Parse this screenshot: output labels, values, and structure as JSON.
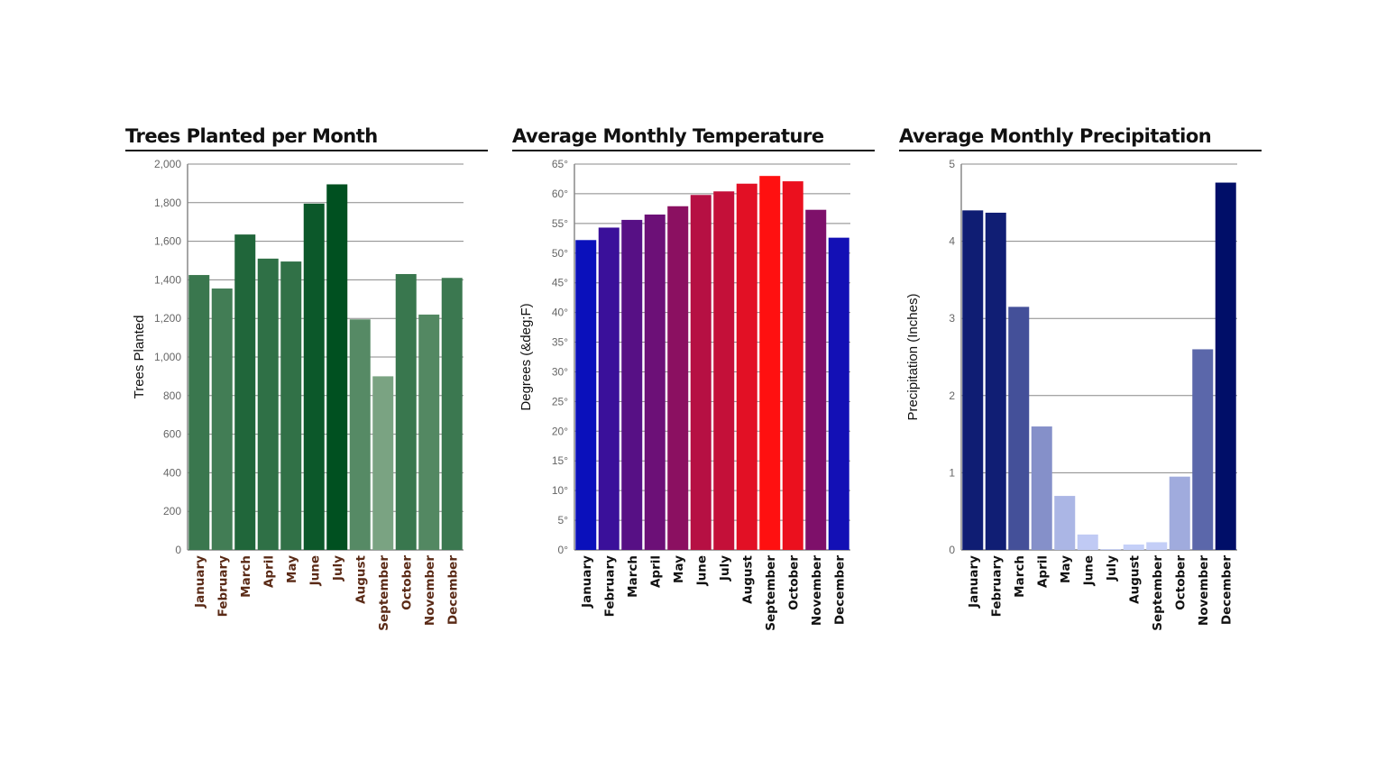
{
  "chart_data": [
    {
      "type": "bar",
      "title": "Trees Planted per Month",
      "xlabel": "",
      "ylabel": "Trees Planted",
      "categories": [
        "January",
        "February",
        "March",
        "April",
        "May",
        "June",
        "July",
        "August",
        "September",
        "October",
        "November",
        "December"
      ],
      "values": [
        1425,
        1355,
        1635,
        1510,
        1495,
        1795,
        1895,
        1195,
        900,
        1430,
        1220,
        1410
      ],
      "ylim": [
        0,
        2000
      ],
      "yticks": [
        0,
        200,
        400,
        600,
        800,
        1000,
        1200,
        1400,
        1600,
        1800,
        2000
      ],
      "ytick_labels": [
        "0",
        "200",
        "400",
        "600",
        "800",
        "1,000",
        "1,200",
        "1,400",
        "1,600",
        "1,800",
        "2,000"
      ],
      "grid": true,
      "colors": {
        "low": "#7aa382",
        "high": "#005020",
        "xtick_label": "#5a2a16",
        "grid": "#888888",
        "axis": "#888888"
      }
    },
    {
      "type": "bar",
      "title": "Average Monthly Temperature",
      "xlabel": "",
      "ylabel": "Degrees (&deg;F)",
      "categories": [
        "January",
        "February",
        "March",
        "April",
        "May",
        "June",
        "July",
        "August",
        "September",
        "October",
        "November",
        "December"
      ],
      "values": [
        52.2,
        54.3,
        55.6,
        56.5,
        57.9,
        59.8,
        60.4,
        61.7,
        63.0,
        62.1,
        57.3,
        52.6
      ],
      "ylim": [
        0,
        65
      ],
      "yticks": [
        0,
        5,
        10,
        15,
        20,
        25,
        30,
        35,
        40,
        45,
        50,
        55,
        60,
        65
      ],
      "ytick_labels": [
        "0°",
        "5°",
        "10°",
        "15°",
        "20°",
        "25°",
        "30°",
        "35°",
        "40°",
        "45°",
        "50°",
        "55°",
        "60°",
        "65°"
      ],
      "grid": true,
      "colors": {
        "low": "#0a10bb",
        "high": "#ff1010",
        "xtick_label": "#111111",
        "grid": "#888888",
        "axis": "#888888"
      }
    },
    {
      "type": "bar",
      "title": "Average Monthly Precipitation",
      "xlabel": "",
      "ylabel": "Precipitation (Inches)",
      "categories": [
        "January",
        "February",
        "March",
        "April",
        "May",
        "June",
        "July",
        "August",
        "September",
        "October",
        "November",
        "December"
      ],
      "values": [
        4.4,
        4.37,
        3.15,
        1.6,
        0.7,
        0.2,
        0.01,
        0.07,
        0.1,
        0.95,
        2.6,
        4.76
      ],
      "ylim": [
        0,
        5
      ],
      "yticks": [
        0,
        1,
        2,
        3,
        4,
        5
      ],
      "ytick_labels": [
        "0",
        "1",
        "2",
        "3",
        "4",
        "5"
      ],
      "grid": true,
      "colors": {
        "low": "#c8d2fa",
        "high": "#000e68",
        "xtick_label": "#111111",
        "grid": "#888888",
        "axis": "#888888"
      }
    }
  ]
}
